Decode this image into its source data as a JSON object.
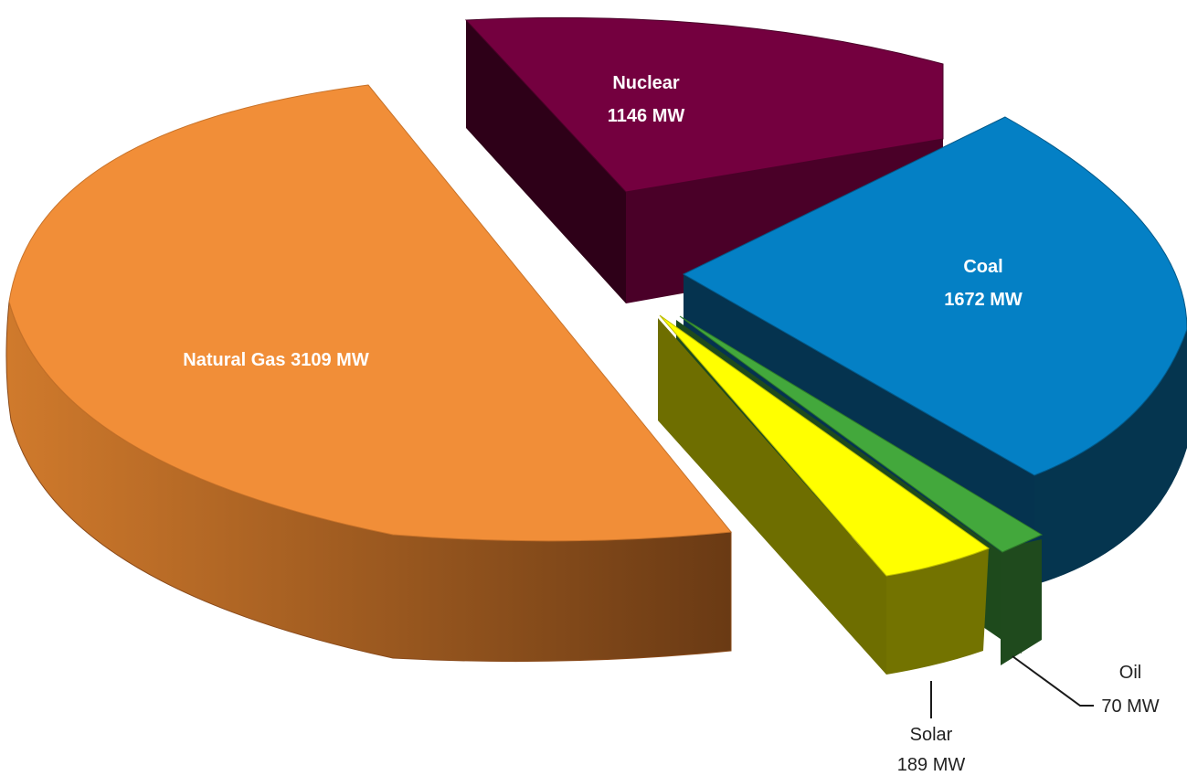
{
  "chart_data": {
    "type": "pie",
    "style": "3d-exploded",
    "title": "",
    "slices": [
      {
        "key": "natural_gas",
        "name": "Natural Gas",
        "value": 3109,
        "unit": "MW",
        "color": "#F18E38",
        "label_line1": "Natural Gas 3109 MW",
        "label_line2": ""
      },
      {
        "key": "nuclear",
        "name": "Nuclear",
        "value": 1146,
        "unit": "MW",
        "color": "#74003F",
        "label_line1": "Nuclear",
        "label_line2": "1146 MW"
      },
      {
        "key": "coal",
        "name": "Coal",
        "value": 1672,
        "unit": "MW",
        "color": "#0480C5",
        "label_line1": "Coal",
        "label_line2": "1672 MW"
      },
      {
        "key": "oil",
        "name": "Oil",
        "value": 70,
        "unit": "MW",
        "color": "#43A83C",
        "label_line1": "Oil",
        "label_line2": "70 MW"
      },
      {
        "key": "solar",
        "name": "Solar",
        "value": 189,
        "unit": "MW",
        "color": "#FFFF00",
        "label_line1": "Solar",
        "label_line2": "189 MW"
      }
    ]
  }
}
